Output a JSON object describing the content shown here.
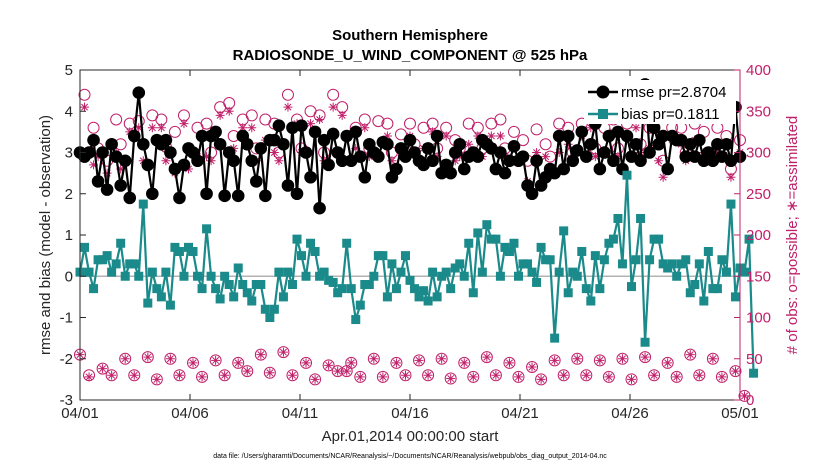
{
  "chart_data": {
    "type": "line",
    "title_line1": "Southern Hemisphere",
    "title_line2": "RADIOSONDE_U_WIND_COMPONENT @ 525 hPa",
    "xlabel": "Apr.01,2014 00:00:00 start",
    "ylabel_left": "rmse and bias (model - observation)",
    "ylabel_right": "# of obs: o=possible; ∗=assimilated",
    "xlim": [
      0,
      30
    ],
    "ylim_left": [
      -3,
      5
    ],
    "ylim_right": [
      0,
      400
    ],
    "x_tick_values": [
      0,
      5,
      10,
      15,
      20,
      25,
      30
    ],
    "x_tick_labels": [
      "04/01",
      "04/06",
      "04/11",
      "04/16",
      "04/21",
      "04/26",
      "05/01"
    ],
    "y_ticks_left": [
      "-3",
      "-2",
      "-1",
      "0",
      "1",
      "2",
      "3",
      "4",
      "5"
    ],
    "y_ticks_right": [
      "0",
      "50",
      "100",
      "150",
      "200",
      "250",
      "300",
      "350",
      "400"
    ],
    "legend": [
      {
        "label": "rmse pr=2.8704",
        "color": "#000000"
      },
      {
        "label": "bias pr=0.1811",
        "color": "#1a8a8a"
      }
    ],
    "colors": {
      "rmse": "#000000",
      "bias": "#1a8a8a",
      "obs": "#c0206a",
      "zero_line": "#b3b3b3"
    },
    "series": [
      {
        "name": "rmse",
        "axis": "left",
        "values": [
          3.0,
          2.9,
          3.0,
          3.3,
          2.3,
          3.0,
          2.1,
          3.2,
          2.9,
          2.2,
          2.8,
          1.9,
          3.4,
          4.45,
          3.2,
          2.7,
          2.0,
          3.3,
          3.2,
          3.3,
          3.0,
          2.6,
          1.9,
          2.7,
          3.1,
          3.0,
          2.8,
          3.4,
          2.0,
          3.4,
          3.5,
          3.2,
          1.95,
          3.0,
          2.8,
          1.95,
          3.4,
          3.2,
          2.8,
          2.3,
          3.1,
          1.95,
          3.3,
          3.3,
          3.65,
          3.2,
          2.2,
          3.6,
          2.0,
          3.65,
          3.0,
          2.4,
          3.5,
          1.65,
          3.3,
          2.7,
          3.45,
          3.0,
          2.8,
          3.4,
          2.8,
          3.5,
          2.9,
          2.4,
          3.2,
          3.0,
          2.9,
          3.25,
          3.2,
          2.4,
          2.6,
          3.1,
          2.9,
          3.3,
          3.0,
          2.8,
          2.7,
          3.1,
          2.8,
          3.4,
          2.5,
          2.7,
          2.5,
          3.0,
          3.2,
          2.6,
          2.9,
          3.0,
          2.9,
          3.3,
          3.2,
          3.1,
          2.6,
          3.0,
          2.5,
          2.8,
          3.15,
          2.8,
          2.9,
          2.2,
          2.0,
          2.8,
          2.2,
          2.4,
          2.6,
          2.5,
          3.4,
          2.6,
          3.4,
          2.8,
          3.05,
          3.5,
          2.9,
          3.2,
          3.7,
          2.6,
          3.0,
          3.4,
          2.8,
          3.5,
          2.6,
          3.4,
          2.9,
          3.2,
          2.8,
          4.65,
          3.0,
          3.6,
          3.2,
          3.4,
          2.6,
          3.4,
          3.3,
          3.3,
          2.9,
          3.2,
          2.9,
          3.3,
          2.8,
          3.0,
          2.8,
          3.2,
          2.9,
          3.2,
          2.8,
          4.1,
          2.9
        ]
      },
      {
        "name": "bias",
        "axis": "left",
        "values": [
          0.1,
          0.7,
          0.1,
          -0.3,
          0.4,
          0.4,
          0.5,
          0.1,
          0.3,
          0.8,
          0.0,
          0.3,
          0.3,
          0.0,
          1.75,
          -0.65,
          0.1,
          -0.3,
          -0.5,
          0.1,
          -0.7,
          0.7,
          0.6,
          0.0,
          0.7,
          0.6,
          0.0,
          -0.3,
          1.15,
          0.0,
          -0.3,
          -0.55,
          0.0,
          -0.2,
          -0.5,
          0.2,
          -0.2,
          -0.4,
          -0.6,
          -0.2,
          -0.2,
          -0.8,
          -1.0,
          -0.8,
          0.1,
          -0.5,
          0.1,
          -0.2,
          0.9,
          0.5,
          0.0,
          0.8,
          0.6,
          0.0,
          0.1,
          -0.1,
          -0.15,
          -0.4,
          -0.3,
          0.8,
          -0.3,
          -1.05,
          -0.7,
          -0.2,
          -0.2,
          0.0,
          0.5,
          0.5,
          -0.5,
          0.3,
          -0.3,
          0.1,
          0.5,
          -0.1,
          -0.3,
          -0.5,
          -0.35,
          -0.6,
          0.1,
          -0.5,
          0.0,
          0.1,
          -0.3,
          0.2,
          0.3,
          0.0,
          0.8,
          -0.4,
          1.05,
          0.1,
          1.25,
          0.9,
          0.9,
          0.0,
          0.7,
          0.6,
          0.8,
          0.0,
          0.3,
          0.3,
          0.1,
          -0.15,
          0.7,
          0.4,
          0.4,
          -1.5,
          0.1,
          1.1,
          -0.4,
          0.1,
          0.0,
          0.6,
          -0.3,
          -0.6,
          0.5,
          -0.3,
          0.4,
          0.8,
          0.9,
          1.4,
          0.3,
          2.45,
          -0.25,
          0.4,
          1.4,
          -1.6,
          0.4,
          0.9,
          0.9,
          0.3,
          0.2,
          0.3,
          0.0,
          0.3,
          0.4,
          -0.4,
          -0.2,
          0.3,
          -0.6,
          0.6,
          -0.3,
          -0.3,
          0.4,
          0.1,
          1.75,
          -0.5,
          0.2,
          0.1,
          0.9,
          -2.35
        ]
      },
      {
        "name": "obs_possible",
        "axis": "right",
        "values": [
          55,
          370,
          30,
          330,
          305,
          38,
          290,
          30,
          340,
          310,
          50,
          335,
          30,
          338,
          310,
          52,
          345,
          25,
          340,
          307,
          50,
          325,
          30,
          345,
          305,
          45,
          330,
          28,
          335,
          300,
          48,
          355,
          30,
          360,
          320,
          45,
          340,
          35,
          345,
          305,
          55,
          340,
          33,
          335,
          300,
          58,
          370,
          30,
          340,
          305,
          45,
          350,
          25,
          345,
          300,
          42,
          370,
          35,
          355,
          35,
          45,
          330,
          28,
          340,
          305,
          50,
          338,
          28,
          335,
          300,
          45,
          322,
          30,
          335,
          310,
          48,
          330,
          30,
          335,
          305,
          50,
          330,
          26,
          315,
          305,
          45,
          335,
          28,
          330,
          305,
          52,
          335,
          30,
          340,
          305,
          45,
          325,
          28,
          315,
          290,
          40,
          328,
          25,
          310,
          295,
          48,
          335,
          30,
          330,
          300,
          50,
          335,
          30,
          345,
          305,
          48,
          330,
          28,
          340,
          305,
          50,
          335,
          25,
          345,
          310,
          52,
          330,
          30,
          310,
          290,
          45,
          330,
          28,
          330,
          300,
          55,
          335,
          30,
          325,
          300,
          50,
          330,
          28,
          320,
          280,
          35,
          315,
          5
        ]
      },
      {
        "name": "obs_assimilated",
        "axis": "right",
        "values": [
          55,
          355,
          28,
          285,
          295,
          38,
          275,
          30,
          300,
          280,
          50,
          325,
          30,
          330,
          290,
          52,
          330,
          25,
          330,
          290,
          50,
          275,
          30,
          335,
          280,
          45,
          295,
          28,
          295,
          290,
          48,
          345,
          30,
          350,
          305,
          45,
          330,
          35,
          330,
          290,
          55,
          315,
          33,
          300,
          290,
          58,
          355,
          30,
          335,
          300,
          45,
          335,
          25,
          340,
          290,
          42,
          355,
          35,
          345,
          35,
          45,
          305,
          28,
          330,
          295,
          50,
          300,
          28,
          320,
          290,
          45,
          300,
          30,
          320,
          300,
          48,
          305,
          30,
          325,
          295,
          50,
          320,
          26,
          290,
          295,
          45,
          310,
          28,
          320,
          295,
          52,
          320,
          30,
          320,
          295,
          45,
          290,
          28,
          295,
          265,
          40,
          300,
          25,
          295,
          280,
          48,
          300,
          30,
          310,
          290,
          50,
          320,
          30,
          330,
          295,
          48,
          300,
          28,
          325,
          295,
          50,
          320,
          25,
          330,
          300,
          52,
          305,
          30,
          290,
          270,
          45,
          315,
          28,
          310,
          290,
          55,
          315,
          30,
          300,
          290,
          50,
          300,
          28,
          295,
          270,
          35,
          300,
          5
        ]
      }
    ],
    "footer": "data file: /Users/gharamti/Documents/NCAR/Reanalysis/~/Documents/NCAR/Reanalysis/webpub/obs_diag_output_2014-04.nc"
  }
}
